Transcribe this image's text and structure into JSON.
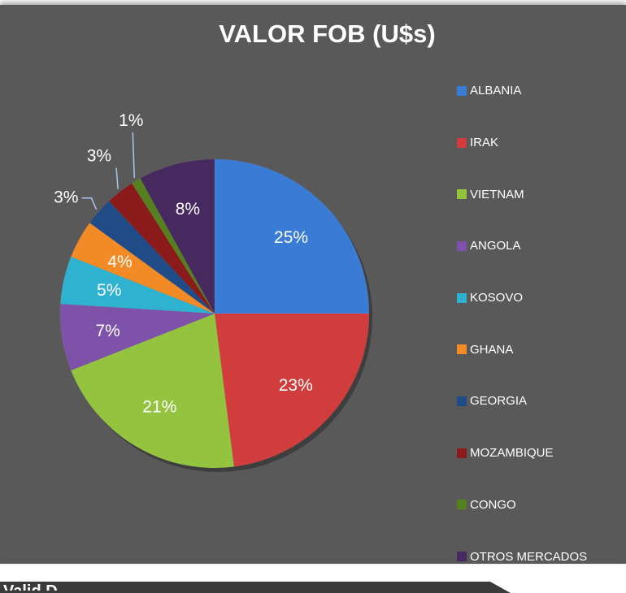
{
  "chart_data": {
    "type": "pie",
    "title": "VALOR FOB (U$s)",
    "categories": [
      "ALBANIA",
      "IRAK",
      "VIETNAM",
      "ANGOLA",
      "KOSOVO",
      "GHANA",
      "GEORGIA",
      "MOZAMBIQUE",
      "CONGO",
      "OTROS MERCADOS"
    ],
    "values": [
      25,
      23,
      21,
      7,
      5,
      4,
      3,
      3,
      1,
      8
    ],
    "labels": [
      "25%",
      "23%",
      "21%",
      "7%",
      "5%",
      "4%",
      "3%",
      "3%",
      "1%",
      "8%"
    ],
    "colors": [
      "#3a7bd5",
      "#d13c3c",
      "#94c43f",
      "#7e52a8",
      "#2fb2cf",
      "#f28a25",
      "#1f4c86",
      "#8b1b1b",
      "#56801f",
      "#45295f"
    ],
    "legend_position": "right"
  },
  "footer": {
    "partial_text": "Valid D"
  }
}
